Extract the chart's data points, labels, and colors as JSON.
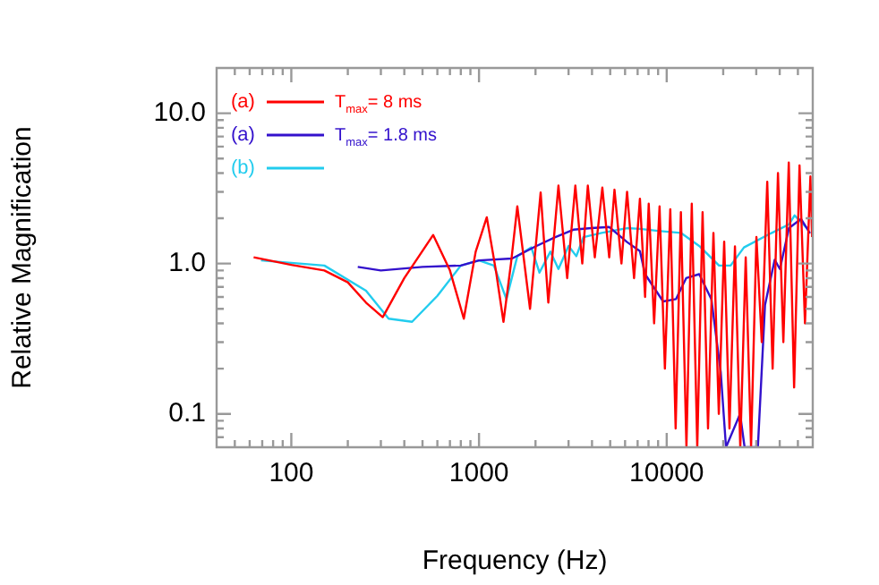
{
  "chart_data": {
    "type": "line",
    "xlabel": "Frequency (Hz)",
    "ylabel": "Relative Magnification",
    "log": "xy",
    "grid": false,
    "legend": "top left",
    "marker": "none",
    "line_style": "solid",
    "xlim": [
      40,
      60000
    ],
    "ylim": [
      0.06,
      20
    ],
    "xticks": [
      {
        "value": 40,
        "label": null
      },
      {
        "value": 50,
        "label": null
      },
      {
        "value": 60,
        "label": null
      },
      {
        "value": 70,
        "label": null
      },
      {
        "value": 80,
        "label": null
      },
      {
        "value": 90,
        "label": null
      },
      100,
      {
        "value": 200,
        "label": null
      },
      {
        "value": 300,
        "label": null
      },
      {
        "value": 400,
        "label": null
      },
      {
        "value": 500,
        "label": null
      },
      {
        "value": 600,
        "label": null
      },
      {
        "value": 700,
        "label": null
      },
      {
        "value": 800,
        "label": null
      },
      {
        "value": 900,
        "label": null
      },
      1000,
      {
        "value": 2000,
        "label": null
      },
      {
        "value": 3000,
        "label": null
      },
      {
        "value": 4000,
        "label": null
      },
      {
        "value": 5000,
        "label": null
      },
      {
        "value": 6000,
        "label": null
      },
      {
        "value": 7000,
        "label": null
      },
      {
        "value": 8000,
        "label": null
      },
      {
        "value": 9000,
        "label": null
      },
      10000,
      {
        "value": 20000,
        "label": null
      },
      {
        "value": 30000,
        "label": null
      },
      {
        "value": 40000,
        "label": null
      },
      {
        "value": 50000,
        "label": null
      },
      {
        "value": 60000,
        "label": null
      }
    ],
    "yticks": [
      {
        "value": 0.06,
        "label": null
      },
      {
        "value": 0.07,
        "label": null
      },
      {
        "value": 0.08,
        "label": null
      },
      {
        "value": 0.09,
        "label": null
      },
      {
        "value": 0.1,
        "label": "0.1"
      },
      {
        "value": 0.2,
        "label": null
      },
      {
        "value": 0.3,
        "label": null
      },
      {
        "value": 0.4,
        "label": null
      },
      {
        "value": 0.5,
        "label": null
      },
      {
        "value": 0.6,
        "label": null
      },
      {
        "value": 0.7,
        "label": null
      },
      {
        "value": 0.8,
        "label": null
      },
      {
        "value": 0.9,
        "label": null
      },
      {
        "value": 1,
        "label": "1.0"
      },
      {
        "value": 2,
        "label": null
      },
      {
        "value": 3,
        "label": null
      },
      {
        "value": 4,
        "label": null
      },
      {
        "value": 5,
        "label": null
      },
      {
        "value": 6,
        "label": null
      },
      {
        "value": 7,
        "label": null
      },
      {
        "value": 8,
        "label": null
      },
      {
        "value": 9,
        "label": null
      },
      {
        "value": 10,
        "label": "10.0"
      },
      {
        "value": 20,
        "label": null
      }
    ],
    "annotations": [
      "T$_{max}$= 8 ms",
      "T$_{max}$= 1.8 ms"
    ],
    "series": [
      {
        "name": "(a)",
        "color": "#ff0000",
        "x": [
          63,
          100,
          150,
          200,
          250,
          307,
          400,
          570,
          700,
          830,
          960,
          1100,
          1230,
          1350,
          1480,
          1600,
          1870,
          2130,
          2340,
          2650,
          2950,
          3260,
          3550,
          3800,
          4140,
          4540,
          4940,
          5270,
          5740,
          6150,
          6700,
          7200,
          7670,
          8020,
          8570,
          9160,
          9780,
          10450,
          11160,
          11900,
          12740,
          13600,
          14550,
          15530,
          16600,
          17740,
          18950,
          20240,
          21600,
          23100,
          24660,
          26360,
          28150,
          30060,
          32100,
          34330,
          36670,
          39160,
          41830,
          44700,
          47730,
          51000,
          54540,
          58300,
          59500
        ],
        "values": [
          1.1,
          0.98,
          0.9,
          0.75,
          0.55,
          0.44,
          0.8,
          1.55,
          0.9,
          0.43,
          1.2,
          2.03,
          0.9,
          0.41,
          1.0,
          2.4,
          0.5,
          2.97,
          0.55,
          3.3,
          0.8,
          3.3,
          1.0,
          3.3,
          1.1,
          3.2,
          1.1,
          3.1,
          1.0,
          3.0,
          0.8,
          2.7,
          0.6,
          2.5,
          0.4,
          2.4,
          0.2,
          2.3,
          0.08,
          2.2,
          0.06,
          2.5,
          0.06,
          2.2,
          0.08,
          1.6,
          0.1,
          1.4,
          0.08,
          1.3,
          0.06,
          1.1,
          0.06,
          1.5,
          0.3,
          3.5,
          0.2,
          4.0,
          0.3,
          4.7,
          0.15,
          4.5,
          0.4,
          3.8,
          1.5
        ]
      },
      {
        "name": "(a)",
        "color": "#3311cc",
        "x": [
          226,
          300,
          500,
          800,
          1000,
          1500,
          2000,
          2550,
          3180,
          3960,
          4940,
          6150,
          7200,
          7670,
          9570,
          11200,
          12700,
          14900,
          17300,
          19400,
          20700,
          24600,
          26000,
          30600,
          33400,
          37600,
          40100,
          44800,
          52000,
          58000
        ],
        "values": [
          0.95,
          0.9,
          0.95,
          0.97,
          1.05,
          1.08,
          1.3,
          1.5,
          1.68,
          1.72,
          1.75,
          1.39,
          1.21,
          0.85,
          0.56,
          0.58,
          0.8,
          0.85,
          0.58,
          0.19,
          0.06,
          0.1,
          0.06,
          0.06,
          0.53,
          1.06,
          0.92,
          1.72,
          1.98,
          1.59
        ]
      },
      {
        "name": "(b)",
        "color": "#22ccee",
        "x": [
          69,
          150,
          250,
          330,
          440,
          600,
          800,
          1000,
          1200,
          1400,
          1600,
          1900,
          2100,
          2400,
          2650,
          3000,
          3300,
          3600,
          4500,
          6150,
          7200,
          9000,
          11900,
          14900,
          19000,
          21900,
          25800,
          35900,
          44800,
          48000,
          57000
        ],
        "values": [
          1.05,
          0.97,
          0.66,
          0.43,
          0.41,
          0.61,
          0.97,
          1.05,
          0.97,
          0.58,
          1.12,
          1.28,
          0.87,
          1.2,
          0.92,
          1.31,
          1.12,
          1.5,
          1.6,
          1.72,
          1.7,
          1.65,
          1.6,
          1.31,
          0.97,
          0.97,
          1.28,
          1.59,
          1.82,
          2.09,
          1.68
        ]
      }
    ]
  }
}
